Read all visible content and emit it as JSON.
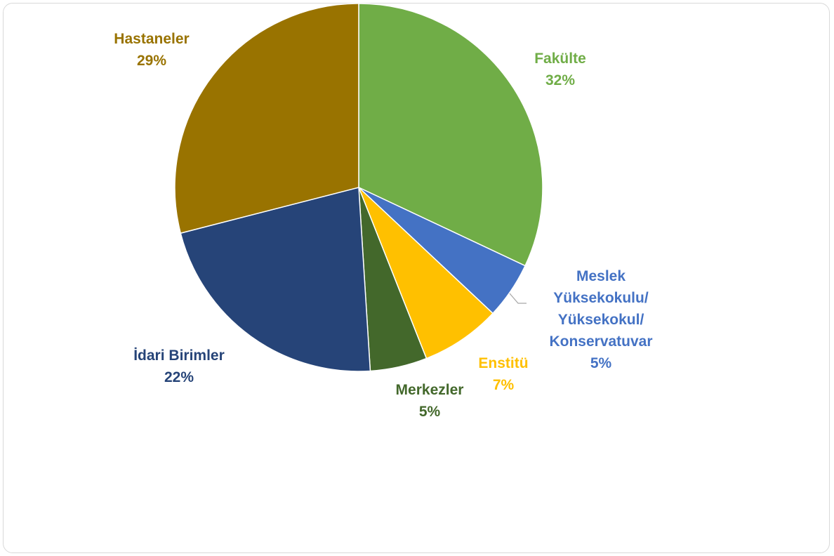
{
  "chart_data": {
    "type": "pie",
    "title": "",
    "unit": "%",
    "series": [
      {
        "values": [
          32,
          5,
          7,
          5,
          22,
          29
        ],
        "categories": [
          "Fakülte",
          "Meslek Yüksekokulu/ Yüksekokul/ Konservatuvar",
          "Enstitü",
          "Merkezler",
          "İdari Birimler",
          "Hastaneler"
        ]
      }
    ],
    "slices": [
      {
        "key": "fakulte",
        "lines": [
          "Fakülte"
        ],
        "value": 32,
        "value_label": "32%",
        "color": "#70AD47"
      },
      {
        "key": "meslek",
        "lines": [
          "Meslek",
          "Yüksekokulu/",
          "Yüksekokul/",
          "Konservatuvar"
        ],
        "value": 5,
        "value_label": "5%",
        "color": "#4472C4"
      },
      {
        "key": "enstitu",
        "lines": [
          "Enstitü"
        ],
        "value": 7,
        "value_label": "7%",
        "color": "#FFC000"
      },
      {
        "key": "merkezler",
        "lines": [
          "Merkezler"
        ],
        "value": 5,
        "value_label": "5%",
        "color": "#43682B"
      },
      {
        "key": "idari",
        "lines": [
          "İdari Birimler"
        ],
        "value": 22,
        "value_label": "22%",
        "color": "#264478"
      },
      {
        "key": "hastaneler",
        "lines": [
          "Hastaneler"
        ],
        "value": 29,
        "value_label": "29%",
        "color": "#997300"
      }
    ],
    "legend": "none",
    "start": "12 o'clock, clockwise",
    "data_labels": "outside, category + percent, colored like slice"
  }
}
